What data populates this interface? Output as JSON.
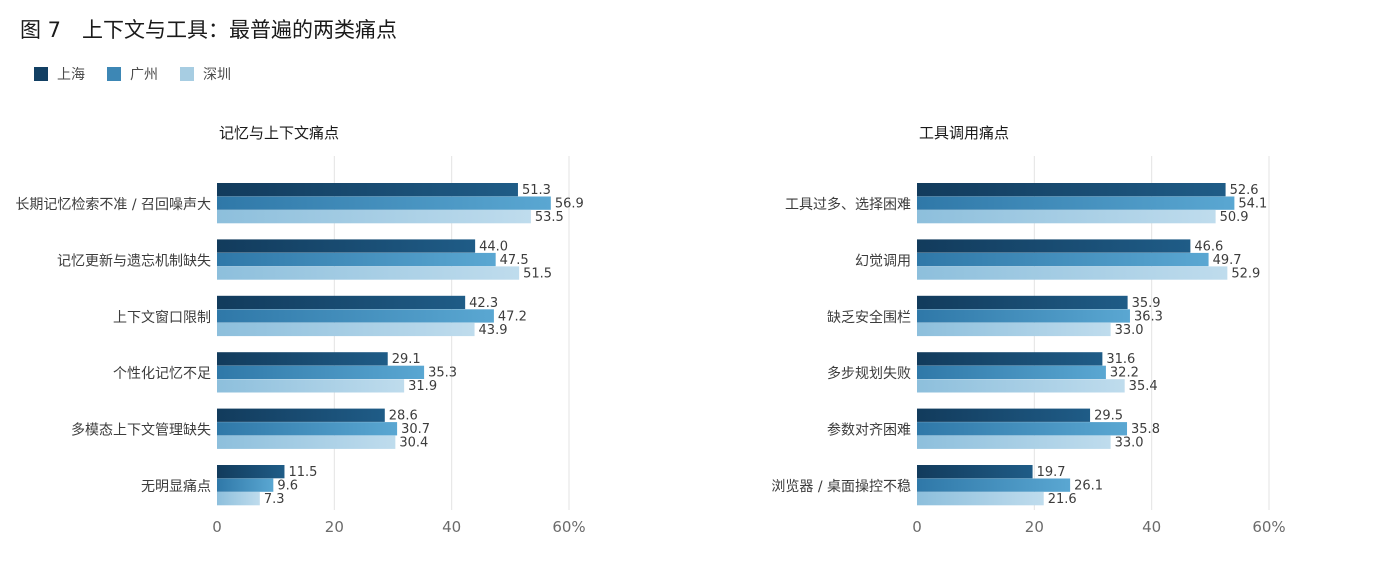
{
  "figure": {
    "title": "图 7　上下文与工具：最普遍的两类痛点"
  },
  "legend": [
    {
      "name": "上海",
      "color": "#123f63"
    },
    {
      "name": "广州",
      "color": "#3d87b5"
    },
    {
      "name": "深圳",
      "color": "#a7cde2"
    }
  ],
  "chart_data": [
    {
      "type": "bar",
      "orientation": "horizontal",
      "title": "记忆与上下文痛点",
      "categories": [
        "长期记忆检索不准 / 召回噪声大",
        "记忆更新与遗忘机制缺失",
        "上下文窗口限制",
        "个性化记忆不足",
        "多模态上下文管理缺失",
        "无明显痛点"
      ],
      "series": [
        {
          "name": "上海",
          "values": [
            51.3,
            44.0,
            42.3,
            29.1,
            28.6,
            11.5
          ]
        },
        {
          "name": "广州",
          "values": [
            56.9,
            47.5,
            47.2,
            35.3,
            30.7,
            9.6
          ]
        },
        {
          "name": "深圳",
          "values": [
            53.5,
            51.5,
            43.9,
            31.9,
            30.4,
            7.3
          ]
        }
      ],
      "xlim": [
        0,
        60
      ],
      "xticks": [
        "0",
        "20",
        "40",
        "60%"
      ],
      "grid": true
    },
    {
      "type": "bar",
      "orientation": "horizontal",
      "title": "工具调用痛点",
      "categories": [
        "工具过多、选择困难",
        "幻觉调用",
        "缺乏安全围栏",
        "多步规划失败",
        "参数对齐困难",
        "浏览器 / 桌面操控不稳"
      ],
      "series": [
        {
          "name": "上海",
          "values": [
            52.6,
            46.6,
            35.9,
            31.6,
            29.5,
            19.7
          ]
        },
        {
          "name": "广州",
          "values": [
            54.1,
            49.7,
            36.3,
            32.2,
            35.8,
            26.1
          ]
        },
        {
          "name": "深圳",
          "values": [
            50.9,
            52.9,
            33.0,
            35.4,
            33.0,
            21.6
          ]
        }
      ],
      "xlim": [
        0,
        60
      ],
      "xticks": [
        "0",
        "20",
        "40",
        "60%"
      ],
      "grid": true
    }
  ]
}
